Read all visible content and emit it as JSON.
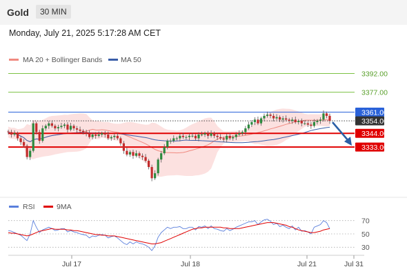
{
  "header": {
    "symbol": "Gold",
    "timeframe": "30 MIN",
    "datetime": "Monday, July 21, 2025 5:17:28 AM CET"
  },
  "chart_data": [
    {
      "type": "candlestick",
      "legend": [
        {
          "name": "MA 20 + Bollinger Bands",
          "color": "#f08a80"
        },
        {
          "name": "MA 50",
          "color": "#3a5da8"
        }
      ],
      "x_ticks": [
        "Jul 17",
        "Jul 18",
        "Jul 21",
        "Jul 31"
      ],
      "ylim": [
        3296,
        3400
      ],
      "close": [
        3345,
        3343,
        3344,
        3340,
        3337,
        3334,
        3325,
        3330,
        3352,
        3345,
        3338,
        3348,
        3350,
        3352,
        3350,
        3348,
        3349,
        3350,
        3351,
        3347,
        3350,
        3348,
        3347,
        3346,
        3345,
        3344,
        3341,
        3343,
        3342,
        3343,
        3344,
        3343,
        3340,
        3341,
        3342,
        3340,
        3336,
        3330,
        3327,
        3329,
        3326,
        3328,
        3326,
        3325,
        3322,
        3317,
        3308,
        3312,
        3323,
        3328,
        3333,
        3338,
        3338,
        3340,
        3340,
        3342,
        3341,
        3341,
        3342,
        3342,
        3340,
        3343,
        3343,
        3344,
        3342,
        3344,
        3342,
        3341,
        3340,
        3339,
        3342,
        3340,
        3341,
        3343,
        3344,
        3345,
        3348,
        3351,
        3353,
        3355,
        3352,
        3356,
        3358,
        3359,
        3358,
        3356,
        3357,
        3355,
        3356,
        3355,
        3354,
        3355,
        3353,
        3354,
        3352,
        3352,
        3351,
        3350,
        3353,
        3354,
        3355,
        3360,
        3358,
        3354
      ],
      "price_lines": [
        {
          "value": 3392.0,
          "label": "3392.00",
          "color": "#7cc142",
          "label_color": "#5aa02c",
          "style": "solid"
        },
        {
          "value": 3377.0,
          "label": "3377.00",
          "color": "#7cc142",
          "label_color": "#5aa02c",
          "style": "solid"
        },
        {
          "value": 3361.0,
          "label": "3361.00",
          "color": "#2a62d9",
          "label_bg": "#2a62d9",
          "style": "solid"
        },
        {
          "value": 3354.0,
          "label": "3354.00",
          "color": "#444444",
          "label_bg": "#333333",
          "style": "dotted"
        },
        {
          "value": 3344.0,
          "label": "3344.00",
          "color": "#e00000",
          "label_bg": "#e00000",
          "style": "thick"
        },
        {
          "value": 3333.0,
          "label": "3333.00",
          "color": "#e00000",
          "label_bg": "#e00000",
          "style": "thick"
        }
      ],
      "arrow": {
        "from": 3354,
        "to": 3333,
        "color": "#2a5fa6"
      }
    },
    {
      "type": "line",
      "legend": [
        {
          "name": "RSI",
          "color": "#5a7fdc"
        },
        {
          "name": "9MA",
          "color": "#e00000"
        }
      ],
      "ylim": [
        20,
        80
      ],
      "y_ticks": [
        "70",
        "50",
        "30"
      ],
      "rsi": [
        55,
        54,
        52,
        50,
        48,
        44,
        40,
        50,
        70,
        60,
        52,
        56,
        58,
        60,
        58,
        55,
        56,
        58,
        58,
        53,
        55,
        53,
        52,
        50,
        49,
        48,
        44,
        47,
        46,
        48,
        49,
        48,
        44,
        46,
        47,
        44,
        40,
        36,
        34,
        38,
        35,
        38,
        36,
        35,
        33,
        30,
        25,
        32,
        45,
        52,
        56,
        60,
        58,
        60,
        60,
        61,
        58,
        58,
        60,
        60,
        56,
        61,
        60,
        62,
        58,
        62,
        58,
        57,
        55,
        54,
        58,
        55,
        57,
        60,
        62,
        64,
        66,
        68,
        68,
        70,
        64,
        68,
        71,
        72,
        69,
        64,
        66,
        61,
        63,
        60,
        58,
        62,
        56,
        60,
        54,
        55,
        53,
        50,
        60,
        62,
        64,
        70,
        67,
        58
      ],
      "ma9": [
        52,
        51,
        51,
        50,
        49,
        48,
        47,
        48,
        50,
        52,
        54,
        55,
        56,
        57,
        58,
        57,
        57,
        57,
        57,
        56,
        56,
        55,
        55,
        54,
        53,
        52,
        51,
        50,
        49,
        49,
        48,
        48,
        47,
        47,
        47,
        46,
        45,
        44,
        43,
        42,
        41,
        40,
        39,
        38,
        37,
        36,
        35,
        35,
        36,
        37,
        39,
        41,
        43,
        45,
        47,
        49,
        51,
        53,
        55,
        57,
        58,
        59,
        59,
        60,
        60,
        60,
        60,
        60,
        60,
        59,
        59,
        58,
        58,
        58,
        58,
        59,
        60,
        61,
        62,
        63,
        64,
        65,
        66,
        67,
        67,
        67,
        66,
        65,
        64,
        63,
        61,
        60,
        58,
        56,
        55,
        54,
        53,
        52,
        52,
        53,
        54,
        56,
        57,
        58
      ]
    }
  ]
}
